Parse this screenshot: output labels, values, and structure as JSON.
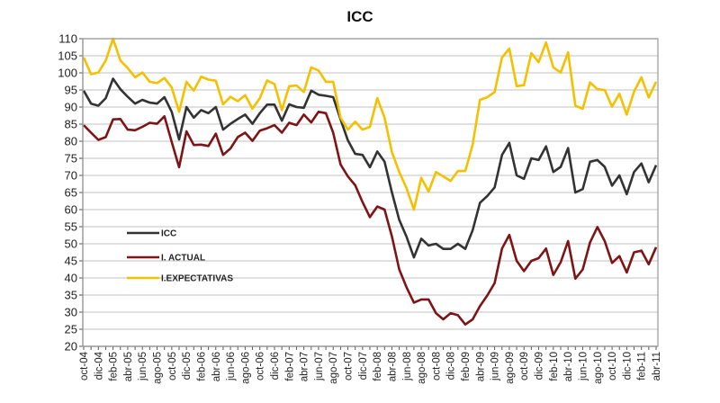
{
  "chart_data": {
    "type": "line",
    "title": "ICC",
    "xlabel": "",
    "ylabel": "",
    "ylim": [
      20,
      110
    ],
    "y_ticks": [
      20,
      25,
      30,
      35,
      40,
      45,
      50,
      55,
      60,
      65,
      70,
      75,
      80,
      85,
      90,
      95,
      100,
      105,
      110
    ],
    "grid": true,
    "legend_placement": "center-left",
    "x_tick_labels": [
      "oct-04",
      "dic-04",
      "feb-05",
      "abr-05",
      "jun-05",
      "ago-05",
      "oct-05",
      "dic-05",
      "feb-06",
      "abr-06",
      "jun-06",
      "ago-06",
      "oct-06",
      "dic-06",
      "feb-07",
      "abr-07",
      "jun-07",
      "ago-07",
      "oct-07",
      "dic-07",
      "feb-08",
      "abr-08",
      "jun-08",
      "ago-08",
      "oct-08",
      "dic-08",
      "feb-09",
      "abr-09",
      "jun-09",
      "ago-09",
      "oct-09",
      "dic-09",
      "feb-10",
      "abr-10",
      "jun-10",
      "ago-10",
      "oct-10",
      "dic-10",
      "feb-11",
      "abr-11"
    ],
    "series": [
      {
        "name": "ICC",
        "color": "#333333",
        "values": [
          94.8,
          91,
          90.4,
          92.6,
          98.3,
          95.2,
          93,
          91,
          92.1,
          91.3,
          91,
          92.9,
          88.6,
          80.5,
          90,
          86.9,
          89.1,
          88.2,
          90,
          83.4,
          85.1,
          86.5,
          87.8,
          85.1,
          88.2,
          90.7,
          90.7,
          86,
          90.8,
          90,
          89.8,
          94.8,
          93.6,
          93.3,
          92.9,
          86.4,
          80.3,
          76.3,
          76,
          72.4,
          77,
          74,
          65,
          57,
          52,
          46,
          51.5,
          49.5,
          50,
          48.5,
          48.5,
          50,
          48.5,
          54,
          62,
          64,
          66.5,
          76,
          79.5,
          70,
          69,
          75,
          74.5,
          78.5,
          71,
          72.5,
          78,
          65,
          66,
          74,
          74.5,
          72.5,
          67,
          70,
          64.5,
          71,
          73.5,
          68,
          73
        ]
      },
      {
        "name": "I. ACTUAL",
        "color": "#7f1416",
        "values": [
          84.7,
          82.5,
          80.4,
          81.2,
          86.4,
          86.5,
          83.4,
          83.2,
          84.2,
          85.4,
          85.1,
          87.3,
          79.8,
          72.4,
          82.9,
          78.9,
          79,
          78.6,
          82.2,
          76,
          77.9,
          81.2,
          82.5,
          80.1,
          83.1,
          83.8,
          84.7,
          82.5,
          85.4,
          84.7,
          87.8,
          85.5,
          88.6,
          88.2,
          82.5,
          73.2,
          69.7,
          67.1,
          62.2,
          57.8,
          60.9,
          60,
          52.1,
          42.5,
          37.2,
          32.8,
          33.7,
          33.7,
          29.7,
          27.9,
          29.7,
          29.1,
          26.4,
          27.9,
          31.8,
          34.9,
          38.5,
          48.6,
          52.6,
          45,
          42,
          45,
          45.8,
          48.6,
          40.9,
          44.6,
          50.8,
          39.8,
          42.5,
          50.4,
          54.9,
          50.8,
          44.4,
          46.4,
          41.6,
          47.5,
          48,
          44,
          49
        ]
      },
      {
        "name": "I.EXPECTATIVAS",
        "color": "#f5c000",
        "values": [
          104.5,
          99.6,
          100.1,
          103.6,
          110,
          103.6,
          101.4,
          98.7,
          100.1,
          97.4,
          97,
          98.5,
          95.7,
          88.6,
          97.4,
          94.8,
          98.9,
          98,
          97.7,
          90.8,
          93,
          91.7,
          93.5,
          89.5,
          92.6,
          97.8,
          96.7,
          89.1,
          96.1,
          96.3,
          94.4,
          101.6,
          100.7,
          97.4,
          97.4,
          86.9,
          83.4,
          85.7,
          83.4,
          84.2,
          92.6,
          86.9,
          76.8,
          71,
          66.2,
          60,
          69.3,
          65.3,
          71,
          69.7,
          68.4,
          71.3,
          71.3,
          79,
          92.1,
          92.9,
          94.4,
          104.5,
          107.1,
          96.1,
          96.4,
          105.8,
          103.1,
          108.9,
          101.6,
          100.1,
          106,
          90.4,
          89.5,
          97.2,
          95.2,
          95,
          90.1,
          93.9,
          87.8,
          94.5,
          98.7,
          92.8,
          97.4
        ]
      }
    ]
  }
}
